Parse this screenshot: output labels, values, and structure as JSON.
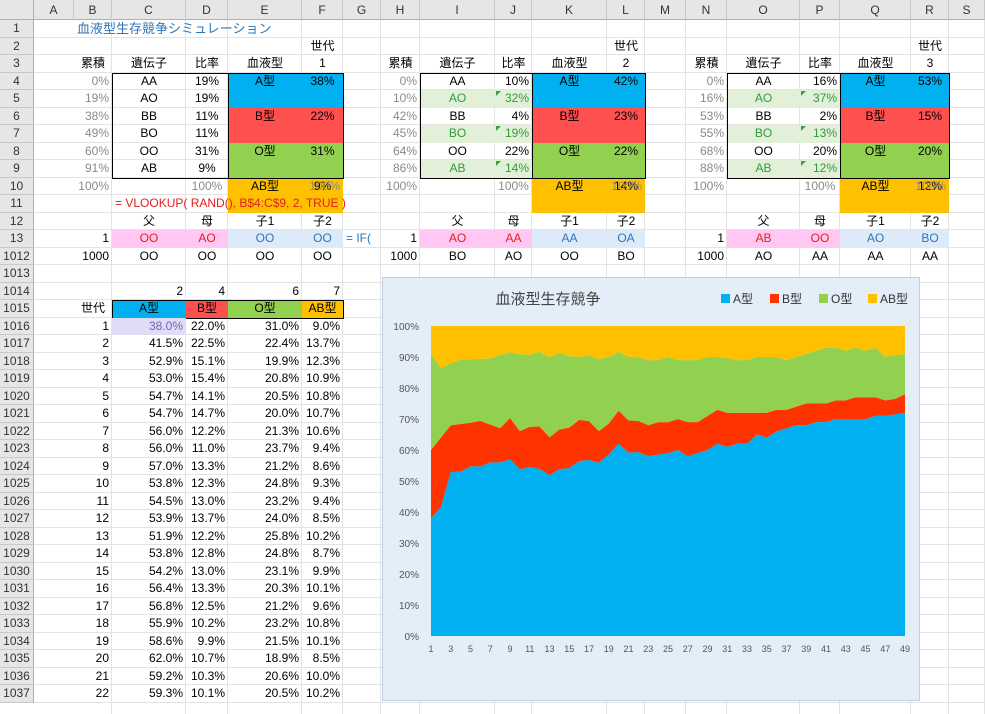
{
  "columns": [
    "A",
    "B",
    "C",
    "D",
    "E",
    "F",
    "G",
    "H",
    "I",
    "J",
    "K",
    "L",
    "M",
    "N",
    "O",
    "P",
    "Q",
    "R",
    "S"
  ],
  "rows": [
    "1",
    "2",
    "3",
    "4",
    "5",
    "6",
    "7",
    "8",
    "9",
    "10",
    "11",
    "12",
    "13",
    "1012",
    "1013",
    "1014",
    "1015",
    "1016",
    "1017",
    "1018",
    "1019",
    "1020",
    "1021",
    "1022",
    "1023",
    "1024",
    "1025",
    "1026",
    "1027",
    "1028",
    "1029",
    "1030",
    "1031",
    "1032",
    "1033",
    "1034",
    "1035",
    "1036",
    "1037"
  ],
  "title": "血液型生存競争シミュレーション",
  "gen_label": "世代",
  "header": {
    "cum": "累積",
    "gene": "遺伝子",
    "ratio": "比率",
    "blood": "血液型"
  },
  "blocks": [
    {
      "gen": "1",
      "cum": [
        "0%",
        "19%",
        "38%",
        "49%",
        "60%",
        "91%"
      ],
      "gene": [
        "AA",
        "AO",
        "BB",
        "BO",
        "OO",
        "AB"
      ],
      "ratio": [
        "19%",
        "19%",
        "11%",
        "11%",
        "31%",
        "9%"
      ],
      "blood": [
        "A型",
        "B型",
        "O型",
        "AB型"
      ],
      "pct": [
        "38%",
        "22%",
        "31%",
        "9%"
      ],
      "total": [
        "100%",
        "100%",
        "100%"
      ]
    },
    {
      "gen": "2",
      "cum": [
        "0%",
        "10%",
        "42%",
        "45%",
        "64%",
        "86%"
      ],
      "gene": [
        "AA",
        "AO",
        "BB",
        "BO",
        "OO",
        "AB"
      ],
      "ratio": [
        "10%",
        "32%",
        "4%",
        "19%",
        "22%",
        "14%"
      ],
      "blood": [
        "A型",
        "B型",
        "O型",
        "AB型"
      ],
      "pct": [
        "42%",
        "23%",
        "22%",
        "14%"
      ],
      "total": [
        "100%",
        "100%",
        "100%"
      ]
    },
    {
      "gen": "3",
      "cum": [
        "0%",
        "16%",
        "53%",
        "55%",
        "68%",
        "88%"
      ],
      "gene": [
        "AA",
        "AO",
        "BB",
        "BO",
        "OO",
        "AB"
      ],
      "ratio": [
        "16%",
        "37%",
        "2%",
        "13%",
        "20%",
        "12%"
      ],
      "blood": [
        "A型",
        "B型",
        "O型",
        "AB型"
      ],
      "pct": [
        "53%",
        "15%",
        "20%",
        "12%"
      ],
      "total": [
        "100%",
        "100%",
        "100%"
      ]
    }
  ],
  "formula1": "= VLOOKUP( RAND(), B$4:C$9, 2, TRUE )",
  "formula2": "= IF(",
  "parents_hdr": [
    "父",
    "母",
    "子1",
    "子2"
  ],
  "row13": [
    {
      "n": "1",
      "v": [
        "OO",
        "AO",
        "OO",
        "OO"
      ]
    },
    {
      "n": "1",
      "v": [
        "AO",
        "AA",
        "AA",
        "OA"
      ]
    },
    {
      "n": "1",
      "v": [
        "AB",
        "OO",
        "AO",
        "BO"
      ]
    }
  ],
  "row1012": [
    {
      "n": "1000",
      "v": [
        "OO",
        "OO",
        "OO",
        "OO"
      ]
    },
    {
      "n": "1000",
      "v": [
        "BO",
        "AO",
        "OO",
        "BO"
      ]
    },
    {
      "n": "1000",
      "v": [
        "AO",
        "AA",
        "AA",
        "AA"
      ]
    }
  ],
  "table": {
    "nums": [
      "2",
      "4",
      "6",
      "7"
    ],
    "gen_hdr": "世代",
    "hdr": [
      "A型",
      "B型",
      "O型",
      "AB型"
    ],
    "rows": [
      [
        "1",
        "38.0%",
        "22.0%",
        "31.0%",
        "9.0%"
      ],
      [
        "2",
        "41.5%",
        "22.5%",
        "22.4%",
        "13.7%"
      ],
      [
        "3",
        "52.9%",
        "15.1%",
        "19.9%",
        "12.3%"
      ],
      [
        "4",
        "53.0%",
        "15.4%",
        "20.8%",
        "10.9%"
      ],
      [
        "5",
        "54.7%",
        "14.1%",
        "20.5%",
        "10.8%"
      ],
      [
        "6",
        "54.7%",
        "14.7%",
        "20.0%",
        "10.7%"
      ],
      [
        "7",
        "56.0%",
        "12.2%",
        "21.3%",
        "10.6%"
      ],
      [
        "8",
        "56.0%",
        "11.0%",
        "23.7%",
        "9.4%"
      ],
      [
        "9",
        "57.0%",
        "13.3%",
        "21.2%",
        "8.6%"
      ],
      [
        "10",
        "53.8%",
        "12.3%",
        "24.8%",
        "9.3%"
      ],
      [
        "11",
        "54.5%",
        "13.0%",
        "23.2%",
        "9.4%"
      ],
      [
        "12",
        "53.9%",
        "13.7%",
        "24.0%",
        "8.5%"
      ],
      [
        "13",
        "51.9%",
        "12.2%",
        "25.8%",
        "10.2%"
      ],
      [
        "14",
        "53.8%",
        "12.8%",
        "24.8%",
        "8.7%"
      ],
      [
        "15",
        "54.2%",
        "13.0%",
        "23.1%",
        "9.9%"
      ],
      [
        "16",
        "56.4%",
        "13.3%",
        "20.3%",
        "10.1%"
      ],
      [
        "17",
        "56.8%",
        "12.5%",
        "21.2%",
        "9.6%"
      ],
      [
        "18",
        "55.9%",
        "10.2%",
        "23.2%",
        "10.8%"
      ],
      [
        "19",
        "58.6%",
        "9.9%",
        "21.5%",
        "10.1%"
      ],
      [
        "20",
        "62.0%",
        "10.7%",
        "18.9%",
        "8.5%"
      ],
      [
        "21",
        "59.2%",
        "10.3%",
        "20.6%",
        "10.0%"
      ],
      [
        "22",
        "59.3%",
        "10.1%",
        "20.5%",
        "10.2%"
      ]
    ]
  },
  "chart_data": {
    "type": "area",
    "title": "血液型生存競争",
    "legend_position": "top-right",
    "series": [
      {
        "name": "A型",
        "color": "#00b0f0",
        "values": [
          38,
          41.5,
          52.9,
          53,
          54.7,
          54.7,
          56,
          56,
          57,
          53.8,
          54.5,
          53.9,
          51.9,
          53.8,
          54.2,
          56.4,
          56.8,
          55.9,
          58.6,
          62,
          59.2,
          59.3,
          58,
          58.5,
          59,
          60,
          58,
          59,
          60,
          62,
          61,
          62,
          62,
          65,
          64,
          66,
          67,
          68,
          68,
          69,
          69,
          70,
          70,
          70,
          70,
          71,
          71,
          71.5,
          72
        ]
      },
      {
        "name": "B型",
        "color": "#ff3300",
        "values": [
          22,
          22.5,
          15.1,
          15.4,
          14.1,
          14.7,
          12.2,
          11,
          13.3,
          12.3,
          13,
          13.7,
          12.2,
          12.8,
          13,
          13.3,
          12.5,
          10.2,
          9.9,
          10.7,
          10.3,
          10.1,
          10,
          10.5,
          10,
          10,
          11,
          10,
          11,
          11,
          11,
          10,
          10,
          7,
          8,
          7,
          6,
          6,
          7,
          6,
          6,
          6,
          6,
          7,
          7,
          6,
          5,
          5,
          6
        ]
      },
      {
        "name": "O型",
        "color": "#92d050",
        "values": [
          31,
          22.4,
          19.9,
          20.8,
          20.5,
          20,
          21.3,
          23.7,
          21.2,
          24.8,
          23.2,
          24,
          25.8,
          24.8,
          23.1,
          20.3,
          21.2,
          23.2,
          21.5,
          18.9,
          20.6,
          20.5,
          21,
          20,
          21,
          19,
          20,
          20,
          19,
          17,
          17.5,
          17,
          17,
          18,
          18,
          17,
          16,
          16,
          16,
          17,
          18,
          17,
          16,
          16,
          15,
          16,
          14,
          14,
          13
        ]
      },
      {
        "name": "AB型",
        "color": "#ffc000",
        "values": [
          9,
          13.7,
          12.3,
          10.9,
          10.8,
          10.7,
          10.6,
          9.4,
          8.6,
          9.3,
          9.4,
          8.5,
          10.2,
          8.7,
          9.9,
          10.1,
          9.6,
          10.8,
          10.1,
          8.5,
          10,
          10.2,
          11,
          11,
          10,
          11,
          11,
          11,
          10,
          10,
          10.5,
          11,
          11,
          10,
          10,
          10,
          11,
          10,
          9,
          8,
          7,
          7,
          8,
          7,
          8,
          7,
          10,
          9.5,
          9
        ]
      }
    ],
    "x_ticks": [
      "1",
      "3",
      "5",
      "7",
      "9",
      "11",
      "13",
      "15",
      "17",
      "19",
      "21",
      "23",
      "25",
      "27",
      "29",
      "31",
      "33",
      "35",
      "37",
      "39",
      "41",
      "43",
      "45",
      "47",
      "49"
    ],
    "y_ticks": [
      "0%",
      "10%",
      "20%",
      "30%",
      "40%",
      "50%",
      "60%",
      "70%",
      "80%",
      "90%",
      "100%"
    ],
    "ylim": [
      0,
      100
    ]
  }
}
